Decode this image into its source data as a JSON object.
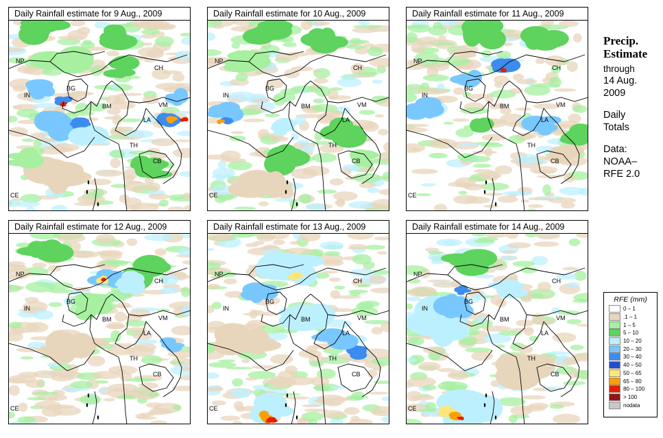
{
  "panels": [
    {
      "title": "Daily Rainfall estimate for  9 Aug., 2009",
      "date": "9 Aug."
    },
    {
      "title": "Daily Rainfall estimate for  10 Aug., 2009",
      "date": "10 Aug."
    },
    {
      "title": "Daily Rainfall estimate for  11 Aug., 2009",
      "date": "11 Aug."
    },
    {
      "title": "Daily Rainfall estimate for  12 Aug., 2009",
      "date": "12 Aug."
    },
    {
      "title": "Daily Rainfall estimate for  13 Aug., 2009",
      "date": "13 Aug."
    },
    {
      "title": "Daily Rainfall estimate for  14 Aug., 2009",
      "date": "14 Aug."
    }
  ],
  "countries": [
    "NP",
    "CH",
    "IN",
    "BG",
    "BM",
    "VM",
    "LA",
    "TH",
    "CB",
    "CE"
  ],
  "side": {
    "heading1": "Precip.",
    "heading2": "Estimate",
    "through": "through",
    "date1": "14 Aug.",
    "date2": "2009",
    "daily": "Daily",
    "totals": "Totals",
    "data1": "Data:",
    "data2": "NOAA–",
    "data3": "RFE 2.0"
  },
  "legend": {
    "title": "RFE (mm)",
    "items": [
      {
        "label": "0 – 1",
        "color": "#ffffff"
      },
      {
        "label": ".1 – 1",
        "color": "#e8d6bc"
      },
      {
        "label": "1 – 5",
        "color": "#a6f0a0"
      },
      {
        "label": "5 – 10",
        "color": "#5ed35e"
      },
      {
        "label": "10 – 20",
        "color": "#bdf0ff"
      },
      {
        "label": "20 – 30",
        "color": "#78c8ff"
      },
      {
        "label": "30 – 40",
        "color": "#3c8cf0"
      },
      {
        "label": "40 – 50",
        "color": "#1e50d2"
      },
      {
        "label": "50 – 65",
        "color": "#ffe678"
      },
      {
        "label": "65 – 80",
        "color": "#ffa000"
      },
      {
        "label": "80 – 100",
        "color": "#e61e00"
      },
      {
        "label": "> 100",
        "color": "#961414"
      },
      {
        "label": "nodata",
        "color": "#c8c8c8"
      }
    ]
  },
  "rain_cells": [
    [
      {
        "c": 3,
        "lx": 0.2,
        "ly": 0.05,
        "r": 0.14
      },
      {
        "c": 3,
        "lx": 0.62,
        "ly": 0.08,
        "r": 0.12
      },
      {
        "c": 2,
        "lx": 0.3,
        "ly": 0.2,
        "r": 0.16
      },
      {
        "c": 5,
        "lx": 0.18,
        "ly": 0.36,
        "r": 0.09
      },
      {
        "c": 6,
        "lx": 0.3,
        "ly": 0.42,
        "r": 0.05
      },
      {
        "c": 10,
        "lx": 0.3,
        "ly": 0.44,
        "r": 0.02
      },
      {
        "c": 6,
        "lx": 0.4,
        "ly": 0.54,
        "r": 0.06
      },
      {
        "c": 5,
        "lx": 0.25,
        "ly": 0.55,
        "r": 0.12
      },
      {
        "c": 4,
        "lx": 0.45,
        "ly": 0.62,
        "r": 0.13
      },
      {
        "c": 3,
        "lx": 0.6,
        "ly": 0.25,
        "r": 0.1
      },
      {
        "c": 6,
        "lx": 0.88,
        "ly": 0.52,
        "r": 0.08
      },
      {
        "c": 9,
        "lx": 0.89,
        "ly": 0.52,
        "r": 0.035
      },
      {
        "c": 10,
        "lx": 0.96,
        "ly": 0.52,
        "r": 0.02
      },
      {
        "c": 5,
        "lx": 0.93,
        "ly": 0.4,
        "r": 0.08
      },
      {
        "c": 3,
        "lx": 0.78,
        "ly": 0.78,
        "r": 0.12
      },
      {
        "c": 1,
        "lx": 0.25,
        "ly": 0.8,
        "r": 0.18
      },
      {
        "c": 2,
        "lx": 0.08,
        "ly": 0.72,
        "r": 0.1
      }
    ],
    [
      {
        "c": 3,
        "lx": 0.3,
        "ly": 0.05,
        "r": 0.14
      },
      {
        "c": 3,
        "lx": 0.65,
        "ly": 0.1,
        "r": 0.12
      },
      {
        "c": 2,
        "lx": 0.2,
        "ly": 0.22,
        "r": 0.14
      },
      {
        "c": 5,
        "lx": 0.1,
        "ly": 0.48,
        "r": 0.1
      },
      {
        "c": 6,
        "lx": 0.1,
        "ly": 0.52,
        "r": 0.04
      },
      {
        "c": 9,
        "lx": 0.07,
        "ly": 0.53,
        "r": 0.02
      },
      {
        "c": 3,
        "lx": 0.45,
        "ly": 0.72,
        "r": 0.14
      },
      {
        "c": 4,
        "lx": 0.42,
        "ly": 0.56,
        "r": 0.08
      },
      {
        "c": 3,
        "lx": 0.75,
        "ly": 0.58,
        "r": 0.12
      },
      {
        "c": 2,
        "lx": 0.85,
        "ly": 0.72,
        "r": 0.1
      },
      {
        "c": 1,
        "lx": 0.3,
        "ly": 0.85,
        "r": 0.16
      }
    ],
    [
      {
        "c": 3,
        "lx": 0.4,
        "ly": 0.06,
        "r": 0.14
      },
      {
        "c": 3,
        "lx": 0.75,
        "ly": 0.1,
        "r": 0.12
      },
      {
        "c": 6,
        "lx": 0.53,
        "ly": 0.24,
        "r": 0.08
      },
      {
        "c": 10,
        "lx": 0.53,
        "ly": 0.26,
        "r": 0.02
      },
      {
        "c": 5,
        "lx": 0.1,
        "ly": 0.45,
        "r": 0.1
      },
      {
        "c": 5,
        "lx": 0.35,
        "ly": 0.3,
        "r": 0.1
      },
      {
        "c": 3,
        "lx": 0.4,
        "ly": 0.55,
        "r": 0.08
      },
      {
        "c": 5,
        "lx": 0.75,
        "ly": 0.55,
        "r": 0.1
      },
      {
        "c": 3,
        "lx": 0.92,
        "ly": 0.6,
        "r": 0.1
      },
      {
        "c": 1,
        "lx": 0.85,
        "ly": 0.7,
        "r": 0.1
      }
    ],
    [
      {
        "c": 3,
        "lx": 0.2,
        "ly": 0.1,
        "r": 0.14
      },
      {
        "c": 3,
        "lx": 0.75,
        "ly": 0.2,
        "r": 0.14
      },
      {
        "c": 5,
        "lx": 0.55,
        "ly": 0.22,
        "r": 0.1
      },
      {
        "c": 8,
        "lx": 0.52,
        "ly": 0.24,
        "r": 0.04
      },
      {
        "c": 10,
        "lx": 0.52,
        "ly": 0.24,
        "r": 0.015
      },
      {
        "c": 4,
        "lx": 0.68,
        "ly": 0.25,
        "r": 0.1
      },
      {
        "c": 2,
        "lx": 0.45,
        "ly": 0.38,
        "r": 0.12
      },
      {
        "c": 1,
        "lx": 0.35,
        "ly": 0.6,
        "r": 0.16
      },
      {
        "c": 5,
        "lx": 0.9,
        "ly": 0.58,
        "r": 0.06
      }
    ],
    [
      {
        "c": 4,
        "lx": 0.45,
        "ly": 0.18,
        "r": 0.16
      },
      {
        "c": 8,
        "lx": 0.48,
        "ly": 0.22,
        "r": 0.04
      },
      {
        "c": 5,
        "lx": 0.28,
        "ly": 0.3,
        "r": 0.1
      },
      {
        "c": 4,
        "lx": 0.55,
        "ly": 0.45,
        "r": 0.16
      },
      {
        "c": 6,
        "lx": 0.82,
        "ly": 0.62,
        "r": 0.06
      },
      {
        "c": 5,
        "lx": 0.72,
        "ly": 0.55,
        "r": 0.12
      },
      {
        "c": 4,
        "lx": 0.35,
        "ly": 0.92,
        "r": 0.12
      },
      {
        "c": 9,
        "lx": 0.33,
        "ly": 0.96,
        "r": 0.05
      },
      {
        "c": 10,
        "lx": 0.35,
        "ly": 0.98,
        "r": 0.03
      },
      {
        "c": 1,
        "lx": 0.2,
        "ly": 0.55,
        "r": 0.16
      }
    ],
    [
      {
        "c": 4,
        "lx": 0.18,
        "ly": 0.45,
        "r": 0.2
      },
      {
        "c": 5,
        "lx": 0.28,
        "ly": 0.38,
        "r": 0.12
      },
      {
        "c": 6,
        "lx": 0.3,
        "ly": 0.3,
        "r": 0.05
      },
      {
        "c": 4,
        "lx": 0.55,
        "ly": 0.3,
        "r": 0.12
      },
      {
        "c": 3,
        "lx": 0.35,
        "ly": 0.15,
        "r": 0.14
      },
      {
        "c": 4,
        "lx": 0.35,
        "ly": 0.92,
        "r": 0.18
      },
      {
        "c": 8,
        "lx": 0.22,
        "ly": 0.93,
        "r": 0.05
      },
      {
        "c": 9,
        "lx": 0.28,
        "ly": 0.96,
        "r": 0.04
      },
      {
        "c": 10,
        "lx": 0.3,
        "ly": 0.97,
        "r": 0.02
      },
      {
        "c": 1,
        "lx": 0.6,
        "ly": 0.7,
        "r": 0.18
      }
    ]
  ]
}
